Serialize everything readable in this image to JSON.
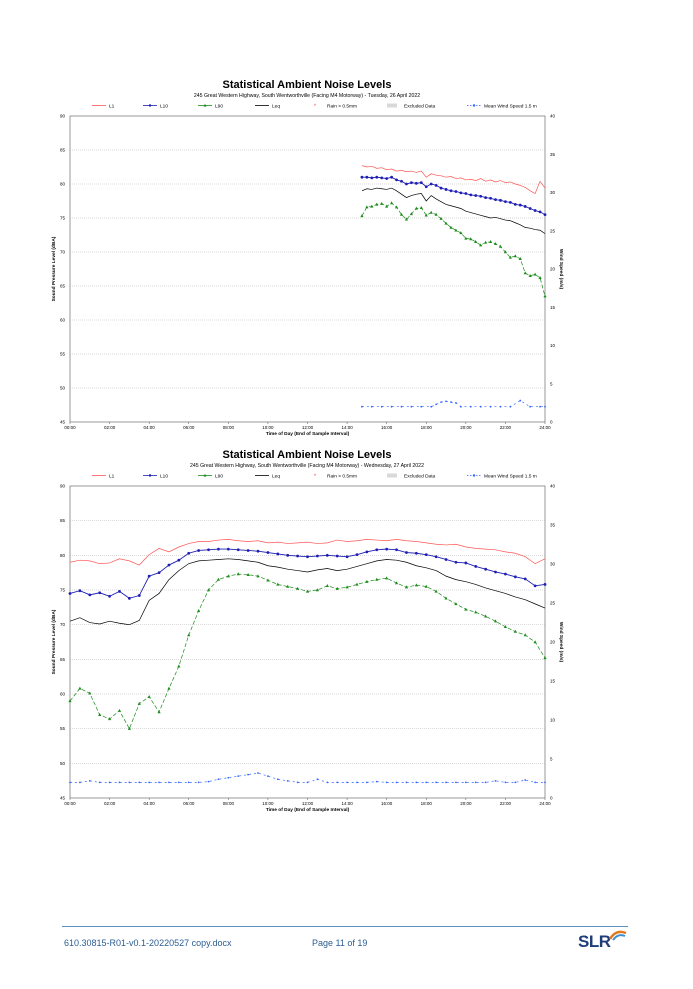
{
  "footer": {
    "document_ref": "610.30815-R01-v0.1-20220527 copy.docx",
    "page_label": "Page 11 of 19",
    "logo_text": "SLR"
  },
  "chart_data": [
    {
      "type": "line",
      "title": "Statistical Ambient Noise Levels",
      "subtitle": "245 Great Western Highway, South Wentworthville (Facing M4 Motorway) - Tuesday, 26 April 2022",
      "xlabel": "Time of Day (End of Sample Interval)",
      "ylabel": "Sound Pressure Level (dBA)",
      "y2label": "Wind Speed (m/s)",
      "ylim": [
        45,
        90
      ],
      "y2lim": [
        0,
        40
      ],
      "xlim": [
        0,
        24
      ],
      "x_ticks": [
        "00:00",
        "02:00",
        "04:00",
        "06:00",
        "08:00",
        "10:00",
        "12:00",
        "14:00",
        "16:00",
        "18:00",
        "20:00",
        "22:00",
        "24:00"
      ],
      "y_ticks": [
        "45",
        "50",
        "55",
        "60",
        "65",
        "70",
        "75",
        "80",
        "85",
        "90"
      ],
      "y2_ticks": [
        "0",
        "5",
        "10",
        "15",
        "20",
        "25",
        "30",
        "35",
        "40"
      ],
      "legend_position": "top",
      "legend": [
        "L1",
        "L10",
        "L90",
        "Leq",
        "Rain > 0.5mm",
        "Excluded Data",
        "Mean Wind Speed 1.5 m"
      ],
      "series": [
        {
          "name": "L1",
          "color": "#ff5555",
          "dash": "",
          "marker": "none",
          "axis": "left",
          "x": [
            14.75,
            15,
            15.25,
            15.5,
            15.75,
            16,
            16.25,
            16.5,
            16.75,
            17,
            17.25,
            17.5,
            17.75,
            18,
            18.25,
            18.5,
            18.75,
            19,
            19.25,
            19.5,
            19.75,
            20,
            20.25,
            20.5,
            20.75,
            21,
            21.25,
            21.5,
            21.75,
            22,
            22.25,
            22.5,
            22.75,
            23,
            23.25,
            23.5,
            23.75,
            24
          ],
          "values": [
            82.7,
            82.5,
            82.6,
            82.3,
            82.4,
            82.1,
            82.2,
            81.9,
            82.0,
            81.8,
            81.9,
            81.7,
            81.9,
            81.0,
            81.5,
            81.3,
            81.2,
            81.0,
            81.1,
            80.8,
            80.9,
            80.6,
            80.7,
            80.5,
            80.8,
            80.4,
            80.6,
            80.3,
            80.5,
            80.2,
            80.3,
            80.0,
            79.8,
            79.5,
            79.0,
            78.6,
            80.4,
            79.4
          ]
        },
        {
          "name": "L10",
          "color": "#1f1fb4",
          "dash": "",
          "marker": "circle",
          "axis": "left",
          "x": [
            14.75,
            15,
            15.25,
            15.5,
            15.75,
            16,
            16.25,
            16.5,
            16.75,
            17,
            17.25,
            17.5,
            17.75,
            18,
            18.25,
            18.5,
            18.75,
            19,
            19.25,
            19.5,
            19.75,
            20,
            20.25,
            20.5,
            20.75,
            21,
            21.25,
            21.5,
            21.75,
            22,
            22.25,
            22.5,
            22.75,
            23,
            23.25,
            23.5,
            23.75,
            24
          ],
          "values": [
            81.0,
            81.0,
            80.9,
            81.0,
            80.9,
            80.8,
            81.0,
            80.6,
            80.4,
            80.0,
            80.2,
            80.1,
            80.2,
            79.6,
            80.0,
            79.8,
            79.4,
            79.2,
            79.0,
            78.9,
            78.7,
            78.6,
            78.4,
            78.3,
            78.2,
            78.0,
            77.9,
            77.7,
            77.6,
            77.4,
            77.3,
            77.0,
            76.9,
            76.7,
            76.4,
            76.1,
            75.9,
            75.5
          ]
        },
        {
          "name": "Leq",
          "color": "#000000",
          "dash": "",
          "marker": "none",
          "axis": "left",
          "x": [
            14.75,
            15,
            15.25,
            15.5,
            15.75,
            16,
            16.25,
            16.5,
            16.75,
            17,
            17.25,
            17.5,
            17.75,
            18,
            18.25,
            18.5,
            18.75,
            19,
            19.25,
            19.5,
            19.75,
            20,
            20.25,
            20.5,
            20.75,
            21,
            21.25,
            21.5,
            21.75,
            22,
            22.25,
            22.5,
            22.75,
            23,
            23.25,
            23.5,
            23.75,
            24
          ],
          "values": [
            79.0,
            79.3,
            79.2,
            79.4,
            79.3,
            79.2,
            79.4,
            79.0,
            78.5,
            78.0,
            78.3,
            78.5,
            78.6,
            77.5,
            78.3,
            77.8,
            77.4,
            77.0,
            76.8,
            76.6,
            76.4,
            76.0,
            75.8,
            75.6,
            75.4,
            75.2,
            75.0,
            75.1,
            74.9,
            74.7,
            74.6,
            74.3,
            74.0,
            73.6,
            73.5,
            73.3,
            73.2,
            72.7
          ]
        },
        {
          "name": "L90",
          "color": "#1a8c1a",
          "dash": "4,2",
          "marker": "triangle",
          "axis": "left",
          "x": [
            14.75,
            15,
            15.25,
            15.5,
            15.75,
            16,
            16.25,
            16.5,
            16.75,
            17,
            17.25,
            17.5,
            17.75,
            18,
            18.25,
            18.5,
            18.75,
            19,
            19.25,
            19.5,
            19.75,
            20,
            20.25,
            20.5,
            20.75,
            21,
            21.25,
            21.5,
            21.75,
            22,
            22.25,
            22.5,
            22.75,
            23,
            23.25,
            23.5,
            23.75,
            24
          ],
          "values": [
            75.3,
            76.6,
            76.7,
            77.0,
            77.1,
            76.7,
            77.2,
            76.6,
            75.5,
            74.8,
            75.6,
            76.4,
            76.5,
            75.4,
            75.8,
            75.5,
            74.9,
            74.2,
            73.6,
            73.2,
            72.8,
            72.0,
            71.9,
            71.5,
            71.0,
            71.4,
            71.5,
            71.2,
            70.8,
            70.0,
            69.2,
            69.4,
            69.0,
            66.9,
            66.5,
            66.7,
            66.2,
            63.5
          ]
        },
        {
          "name": "Mean Wind Speed 1.5 m",
          "color": "#3366ff",
          "dash": "2,3",
          "marker": "dot",
          "axis": "right",
          "x": [
            14.75,
            15.25,
            15.75,
            16.25,
            16.75,
            17.25,
            17.75,
            18.25,
            18.5,
            18.75,
            19,
            19.25,
            19.5,
            19.75,
            20.25,
            20.75,
            21.25,
            21.75,
            22.25,
            22.75,
            23.25,
            23.75,
            24
          ],
          "values": [
            2.0,
            2.0,
            2.0,
            2.0,
            2.0,
            2.0,
            2.0,
            2.0,
            2.3,
            2.6,
            2.7,
            2.6,
            2.5,
            2.0,
            2.0,
            2.0,
            2.0,
            2.0,
            2.0,
            2.8,
            2.0,
            2.0,
            2.0
          ]
        }
      ]
    },
    {
      "type": "line",
      "title": "Statistical Ambient Noise Levels",
      "subtitle": "245 Great Western Highway, South Wentworthville (Facing M4 Motorway) - Wednesday, 27 April 2022",
      "xlabel": "Time of Day (End of Sample Interval)",
      "ylabel": "Sound Pressure Level (dBA)",
      "y2label": "Wind Speed (m/s)",
      "ylim": [
        45,
        90
      ],
      "y2lim": [
        0,
        40
      ],
      "xlim": [
        0,
        24
      ],
      "x_ticks": [
        "00:00",
        "02:00",
        "04:00",
        "06:00",
        "08:00",
        "10:00",
        "12:00",
        "14:00",
        "16:00",
        "18:00",
        "20:00",
        "22:00",
        "24:00"
      ],
      "y_ticks": [
        "45",
        "50",
        "55",
        "60",
        "65",
        "70",
        "75",
        "80",
        "85",
        "90"
      ],
      "y2_ticks": [
        "0",
        "5",
        "10",
        "15",
        "20",
        "25",
        "30",
        "35",
        "40"
      ],
      "legend_position": "top",
      "legend": [
        "L1",
        "L10",
        "L90",
        "Leq",
        "Rain > 0.5mm",
        "Excluded Data",
        "Mean Wind Speed 1.5 m"
      ],
      "series": [
        {
          "name": "L1",
          "color": "#ff5555",
          "dash": "",
          "marker": "none",
          "axis": "left",
          "x": [
            0,
            0.5,
            1,
            1.5,
            2,
            2.5,
            3,
            3.5,
            4,
            4.5,
            5,
            5.5,
            6,
            6.5,
            7,
            7.5,
            8,
            8.5,
            9,
            9.5,
            10,
            10.5,
            11,
            11.5,
            12,
            12.5,
            13,
            13.5,
            14,
            14.5,
            15,
            15.5,
            16,
            16.5,
            17,
            17.5,
            18,
            18.5,
            19,
            19.5,
            20,
            20.5,
            21,
            21.5,
            22,
            22.5,
            23,
            23.5,
            24
          ],
          "values": [
            79.0,
            79.3,
            79.2,
            78.8,
            78.9,
            79.5,
            79.2,
            78.6,
            80.1,
            81.0,
            80.5,
            81.2,
            81.7,
            82.0,
            82.0,
            82.2,
            82.3,
            82.1,
            82.0,
            82.1,
            81.8,
            81.9,
            81.7,
            81.8,
            81.9,
            81.7,
            81.8,
            82.2,
            82.0,
            82.1,
            82.3,
            82.2,
            82.1,
            82.3,
            82.1,
            82.0,
            81.8,
            81.6,
            81.5,
            81.6,
            81.2,
            81.0,
            80.9,
            80.8,
            80.5,
            80.3,
            79.8,
            78.8,
            79.5
          ]
        },
        {
          "name": "L10",
          "color": "#1f1fb4",
          "dash": "",
          "marker": "circle",
          "axis": "left",
          "x": [
            0,
            0.5,
            1,
            1.5,
            2,
            2.5,
            3,
            3.5,
            4,
            4.5,
            5,
            5.5,
            6,
            6.5,
            7,
            7.5,
            8,
            8.5,
            9,
            9.5,
            10,
            10.5,
            11,
            11.5,
            12,
            12.5,
            13,
            13.5,
            14,
            14.5,
            15,
            15.5,
            16,
            16.5,
            17,
            17.5,
            18,
            18.5,
            19,
            19.5,
            20,
            20.5,
            21,
            21.5,
            22,
            22.5,
            23,
            23.5,
            24
          ],
          "values": [
            74.5,
            74.9,
            74.3,
            74.6,
            74.1,
            74.8,
            73.8,
            74.2,
            77.0,
            77.5,
            78.6,
            79.3,
            80.3,
            80.7,
            80.8,
            80.9,
            80.9,
            80.8,
            80.7,
            80.6,
            80.4,
            80.2,
            80.0,
            79.9,
            79.8,
            79.9,
            80.0,
            79.9,
            79.8,
            80.1,
            80.5,
            80.8,
            80.9,
            80.8,
            80.4,
            80.3,
            80.1,
            79.8,
            79.4,
            79.0,
            78.9,
            78.4,
            78.0,
            77.6,
            77.3,
            76.9,
            76.6,
            75.6,
            75.8
          ]
        },
        {
          "name": "Leq",
          "color": "#000000",
          "dash": "",
          "marker": "none",
          "axis": "left",
          "x": [
            0,
            0.5,
            1,
            1.5,
            2,
            2.5,
            3,
            3.5,
            4,
            4.5,
            5,
            5.5,
            6,
            6.5,
            7,
            7.5,
            8,
            8.5,
            9,
            9.5,
            10,
            10.5,
            11,
            11.5,
            12,
            12.5,
            13,
            13.5,
            14,
            14.5,
            15,
            15.5,
            16,
            16.5,
            17,
            17.5,
            18,
            18.5,
            19,
            19.5,
            20,
            20.5,
            21,
            21.5,
            22,
            22.5,
            23,
            23.5,
            24
          ],
          "values": [
            70.5,
            71.0,
            70.3,
            70.1,
            70.5,
            70.2,
            70.0,
            70.6,
            73.5,
            74.5,
            76.5,
            77.8,
            78.8,
            79.2,
            79.3,
            79.4,
            79.5,
            79.4,
            79.2,
            79.0,
            78.5,
            78.3,
            78.0,
            77.8,
            77.6,
            77.9,
            78.1,
            77.8,
            78.0,
            78.4,
            78.8,
            79.2,
            79.4,
            79.3,
            79.0,
            78.5,
            78.2,
            77.8,
            77.0,
            76.5,
            76.2,
            75.8,
            75.3,
            74.9,
            74.5,
            74.0,
            73.6,
            73.0,
            72.4
          ]
        },
        {
          "name": "L90",
          "color": "#1a8c1a",
          "dash": "4,2",
          "marker": "triangle",
          "axis": "left",
          "x": [
            0,
            0.5,
            1,
            1.5,
            2,
            2.5,
            3,
            3.5,
            4,
            4.5,
            5,
            5.5,
            6,
            6.5,
            7,
            7.5,
            8,
            8.5,
            9,
            9.5,
            10,
            10.5,
            11,
            11.5,
            12,
            12.5,
            13,
            13.5,
            14,
            14.5,
            15,
            15.5,
            16,
            16.5,
            17,
            17.5,
            18,
            18.5,
            19,
            19.5,
            20,
            20.5,
            21,
            21.5,
            22,
            22.5,
            23,
            23.5,
            24
          ],
          "values": [
            59.0,
            60.8,
            60.1,
            57.0,
            56.4,
            57.6,
            55.0,
            58.6,
            59.6,
            57.4,
            60.8,
            64.0,
            68.5,
            72.0,
            75.0,
            76.5,
            77.0,
            77.3,
            77.2,
            77.0,
            76.4,
            75.8,
            75.5,
            75.2,
            74.8,
            75.0,
            75.6,
            75.2,
            75.4,
            75.8,
            76.2,
            76.5,
            76.7,
            76.0,
            75.4,
            75.7,
            75.5,
            74.8,
            73.8,
            73.0,
            72.2,
            71.8,
            71.2,
            70.5,
            69.7,
            69.0,
            68.5,
            67.5,
            65.2
          ]
        },
        {
          "name": "Mean Wind Speed 1.5 m",
          "color": "#3366ff",
          "dash": "2,3",
          "marker": "dot",
          "axis": "right",
          "x": [
            0,
            0.5,
            1,
            1.5,
            2,
            2.5,
            3,
            3.5,
            4,
            4.5,
            5,
            5.5,
            6,
            6.5,
            7,
            7.5,
            8,
            8.5,
            9,
            9.5,
            10,
            10.5,
            11,
            11.5,
            12,
            12.5,
            13,
            13.5,
            14,
            14.5,
            15,
            15.5,
            16,
            16.5,
            17,
            17.5,
            18,
            18.5,
            19,
            19.5,
            20,
            20.5,
            21,
            21.5,
            22,
            22.5,
            23,
            23.5,
            24
          ],
          "values": [
            2.0,
            2.0,
            2.2,
            2.0,
            2.0,
            2.0,
            2.0,
            2.0,
            2.0,
            2.0,
            2.0,
            2.0,
            2.0,
            2.0,
            2.1,
            2.4,
            2.6,
            2.8,
            3.0,
            3.2,
            2.8,
            2.4,
            2.2,
            2.0,
            2.0,
            2.4,
            2.0,
            2.0,
            2.0,
            2.0,
            2.0,
            2.1,
            2.0,
            2.0,
            2.0,
            2.0,
            2.0,
            2.0,
            2.0,
            2.0,
            2.0,
            2.0,
            2.0,
            2.2,
            2.0,
            2.0,
            2.3,
            2.0,
            2.0
          ]
        }
      ]
    }
  ]
}
